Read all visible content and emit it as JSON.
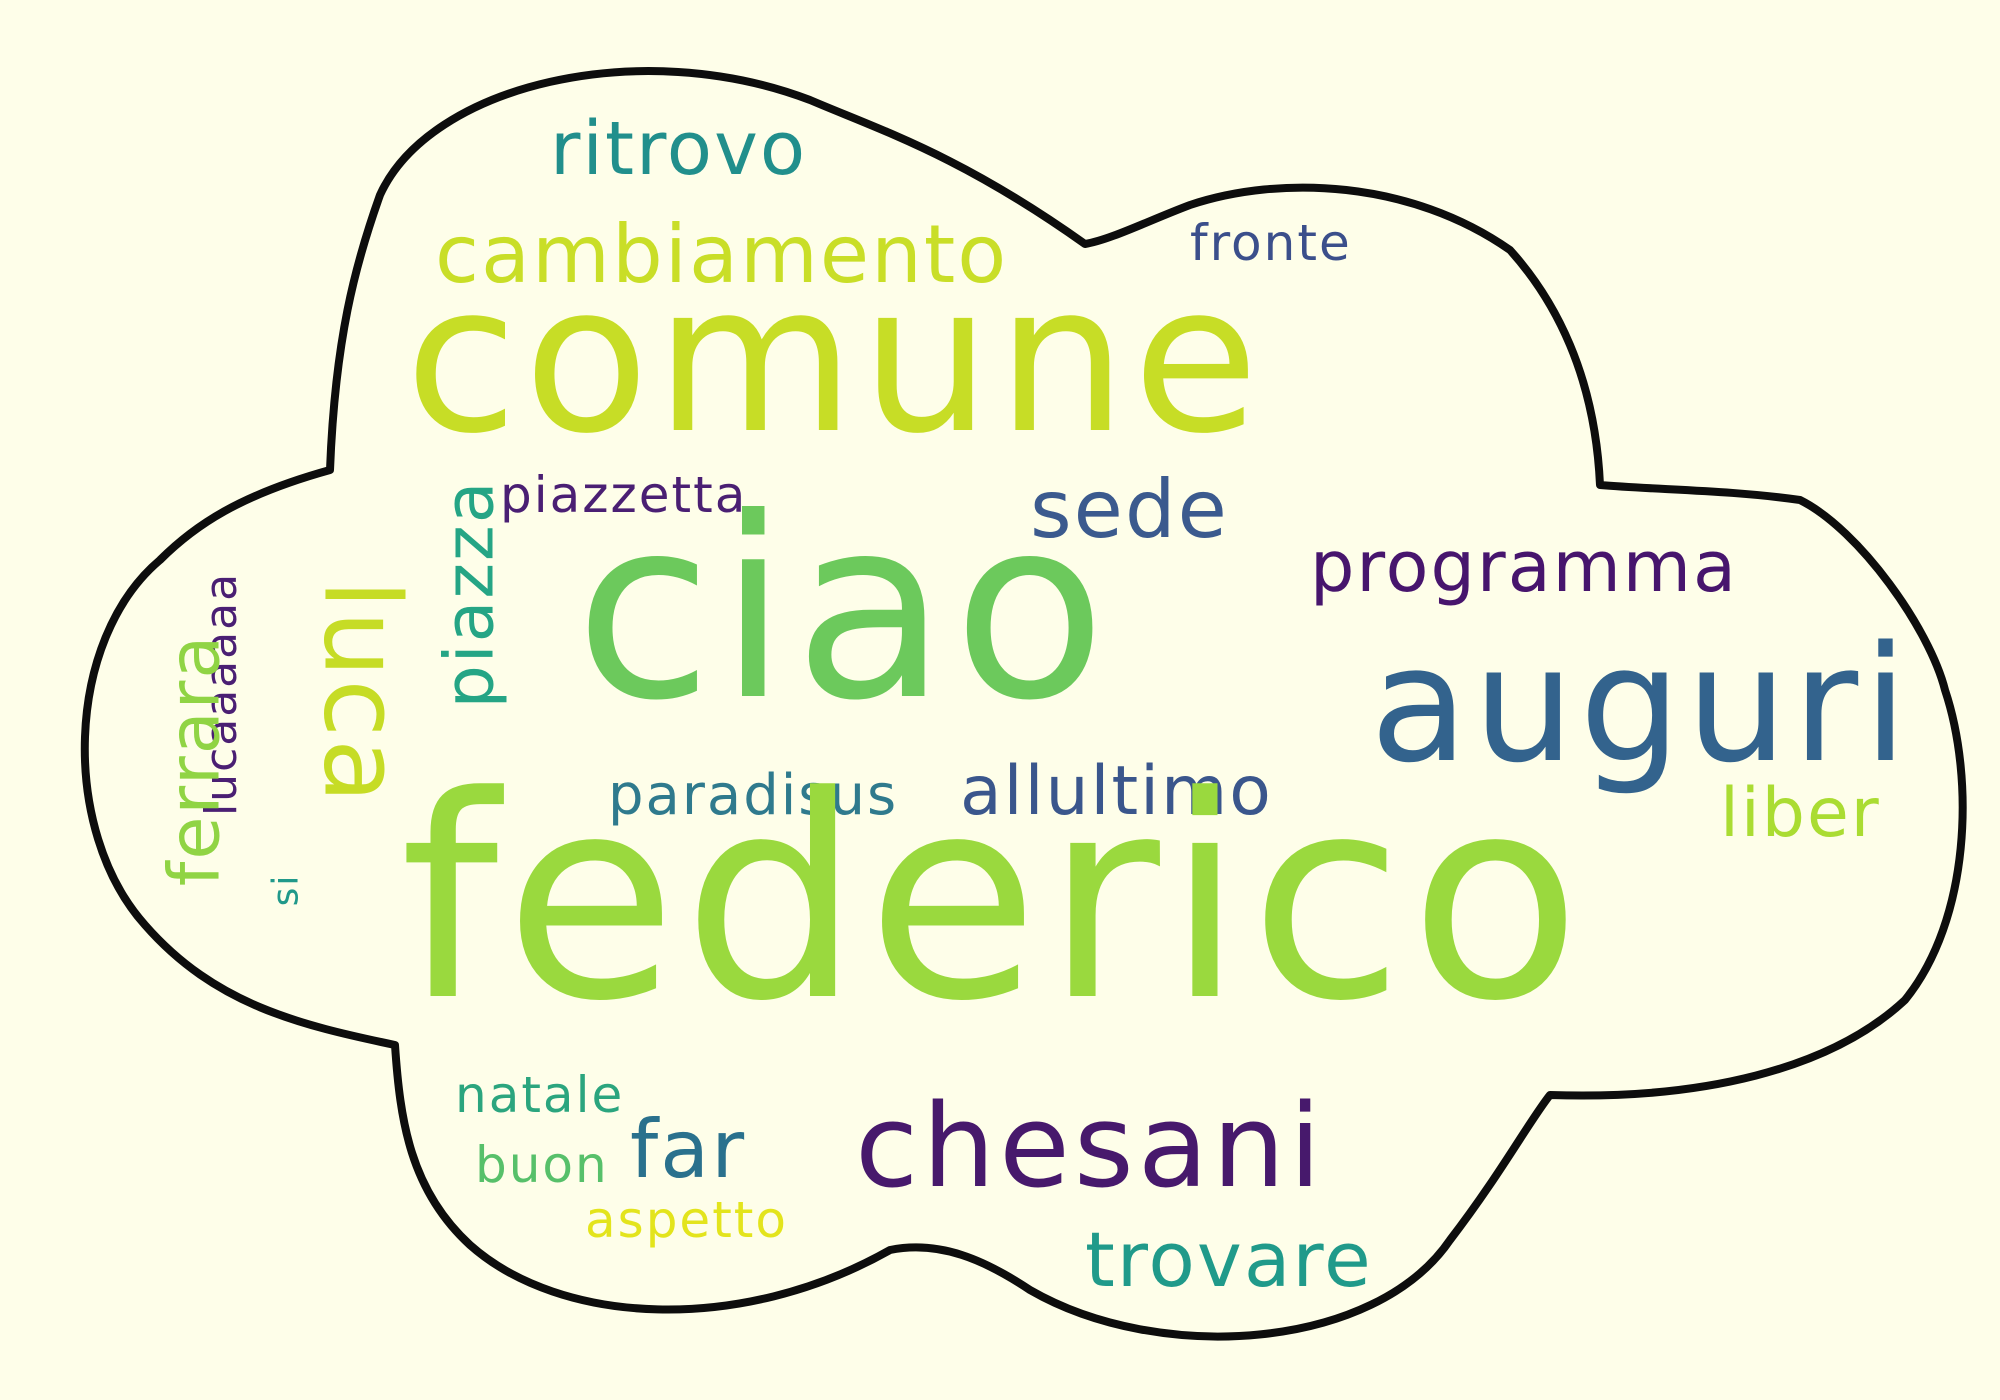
{
  "words": [
    {
      "id": "ritrovo",
      "text": "ritrovo",
      "color": "#218f8c"
    },
    {
      "id": "cambiamento",
      "text": "cambiamento",
      "color": "#c9de27"
    },
    {
      "id": "fronte",
      "text": "fronte",
      "color": "#3b4f8b"
    },
    {
      "id": "comune",
      "text": "comune",
      "color": "#c7dd26"
    },
    {
      "id": "piazzetta",
      "text": "piazzetta",
      "color": "#4a1f73"
    },
    {
      "id": "sede",
      "text": "sede",
      "color": "#3b5a8e"
    },
    {
      "id": "ciao",
      "text": "ciao",
      "color": "#6cc95c"
    },
    {
      "id": "programma",
      "text": "programma",
      "color": "#47156d"
    },
    {
      "id": "auguri",
      "text": "auguri",
      "color": "#33638d"
    },
    {
      "id": "piazza",
      "text": "piazza",
      "color": "#25a585"
    },
    {
      "id": "luca",
      "text": "luca",
      "color": "#c6dc25"
    },
    {
      "id": "lucaaaaaa",
      "text": "lucaaaaaa",
      "color": "#4a1f73"
    },
    {
      "id": "ferrara",
      "text": "ferrara",
      "color": "#90d444"
    },
    {
      "id": "si",
      "text": "si",
      "color": "#20998a"
    },
    {
      "id": "paradisus",
      "text": "paradisus",
      "color": "#2f7a8d"
    },
    {
      "id": "allultimo",
      "text": "allultimo",
      "color": "#3a568c"
    },
    {
      "id": "liber",
      "text": "liber",
      "color": "#aadc32"
    },
    {
      "id": "federico",
      "text": "federico",
      "color": "#9ad93e"
    },
    {
      "id": "natale",
      "text": "natale",
      "color": "#2ba57e"
    },
    {
      "id": "buon",
      "text": "buon",
      "color": "#57c06a"
    },
    {
      "id": "far",
      "text": "far",
      "color": "#2a718d"
    },
    {
      "id": "aspetto",
      "text": "aspetto",
      "color": "#e3e41c"
    },
    {
      "id": "chesani",
      "text": "chesani",
      "color": "#47196c"
    },
    {
      "id": "trovare",
      "text": "trovare",
      "color": "#209a8a"
    }
  ]
}
